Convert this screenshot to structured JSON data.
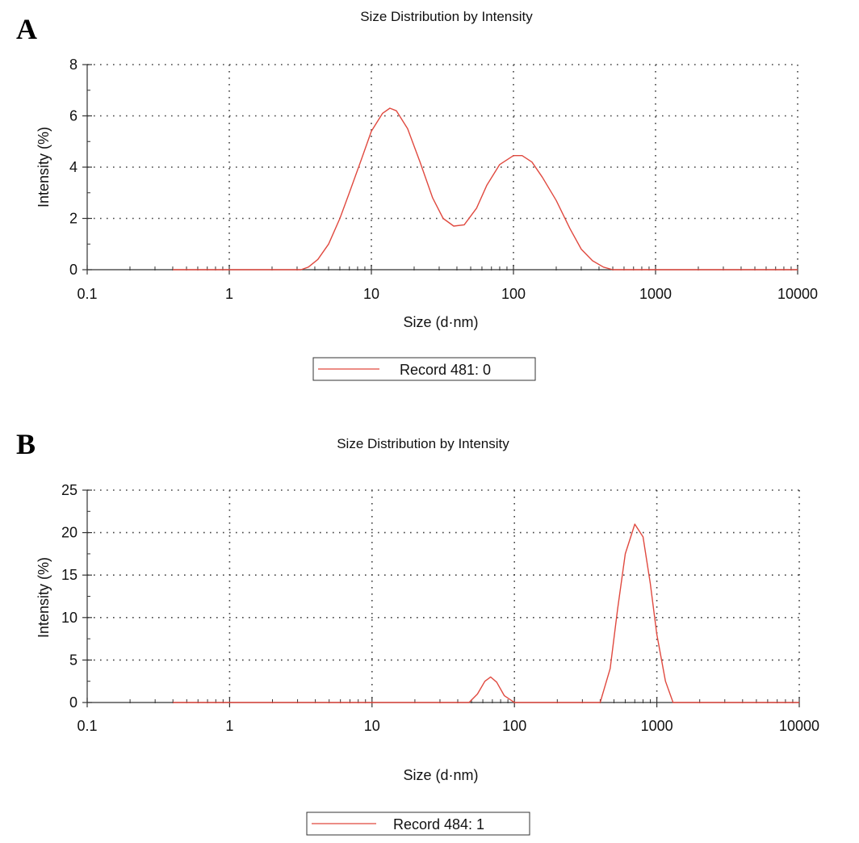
{
  "panels": [
    {
      "letter": "A"
    },
    {
      "letter": "B"
    }
  ],
  "colors": {
    "series": "#e0493f",
    "axis": "#333333",
    "grid": "#444444"
  },
  "chart_data": [
    {
      "type": "line",
      "title": "Size Distribution by Intensity",
      "xlabel": "Size (d·nm)",
      "ylabel": "Intensity (%)",
      "xscale": "log",
      "xlim": [
        0.1,
        10000
      ],
      "ylim": [
        0,
        8
      ],
      "xticks": [
        0.1,
        1,
        10,
        100,
        1000,
        10000
      ],
      "xtick_labels": [
        "0.1",
        "1",
        "10",
        "100",
        "1000",
        "10000"
      ],
      "yticks": [
        0,
        2,
        4,
        6,
        8
      ],
      "ytick_labels": [
        "0",
        "2",
        "4",
        "6",
        "8"
      ],
      "grid": true,
      "legend_position": "bottom-center",
      "series": [
        {
          "name": "Record 481: 0",
          "x": [
            0.4,
            1,
            2,
            3.2,
            3.6,
            4.2,
            5,
            6,
            7,
            8.5,
            10,
            12,
            13.5,
            15,
            18,
            22,
            27,
            32,
            38,
            45,
            55,
            65,
            80,
            100,
            115,
            135,
            160,
            200,
            250,
            300,
            360,
            430,
            500,
            700,
            1000,
            3000,
            10000
          ],
          "y": [
            0,
            0,
            0,
            0,
            0.1,
            0.4,
            1.0,
            2.0,
            3.0,
            4.3,
            5.4,
            6.1,
            6.3,
            6.2,
            5.5,
            4.2,
            2.8,
            2.0,
            1.7,
            1.75,
            2.4,
            3.3,
            4.1,
            4.45,
            4.45,
            4.2,
            3.6,
            2.7,
            1.6,
            0.8,
            0.35,
            0.1,
            0,
            0,
            0,
            0,
            0
          ]
        }
      ]
    },
    {
      "type": "line",
      "title": "Size Distribution by Intensity",
      "xlabel": "Size (d·nm)",
      "ylabel": "Intensity (%)",
      "xscale": "log",
      "xlim": [
        0.1,
        10000
      ],
      "ylim": [
        0,
        25
      ],
      "xticks": [
        0.1,
        1,
        10,
        100,
        1000,
        10000
      ],
      "xtick_labels": [
        "0.1",
        "1",
        "10",
        "100",
        "1000",
        "10000"
      ],
      "yticks": [
        0,
        5,
        10,
        15,
        20,
        25
      ],
      "ytick_labels": [
        "0",
        "5",
        "10",
        "15",
        "20",
        "25"
      ],
      "grid": true,
      "legend_position": "bottom-center",
      "series": [
        {
          "name": "Record 484: 1",
          "x": [
            0.4,
            1,
            10,
            48,
            55,
            62,
            68,
            75,
            85,
            100,
            150,
            300,
            400,
            470,
            530,
            600,
            700,
            800,
            900,
            1000,
            1150,
            1300,
            1500,
            10000
          ],
          "y": [
            0,
            0,
            0,
            0,
            1.0,
            2.5,
            3.0,
            2.4,
            0.8,
            0,
            0,
            0,
            0,
            4,
            11,
            17.5,
            21,
            19.5,
            14,
            8,
            2.5,
            0,
            0,
            0
          ]
        }
      ]
    }
  ]
}
